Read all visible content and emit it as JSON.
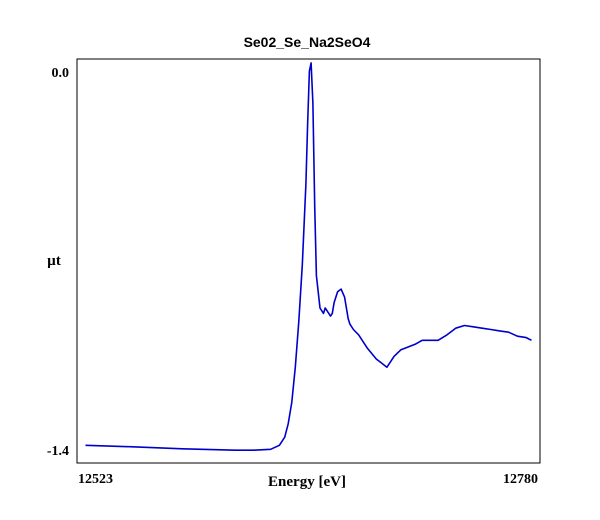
{
  "chart_data": {
    "type": "line",
    "title": "Se02_Se_Na2SeO4",
    "xlabel": "Energy [eV]",
    "ylabel": "µt",
    "xlim": [
      12523,
      12780
    ],
    "ylim": [
      -1.4,
      0.0
    ],
    "x_ticks": [
      "12523",
      "12780"
    ],
    "y_ticks": [
      "0.0",
      "-1.4"
    ],
    "grid": false,
    "legend": "none",
    "colors": {
      "line": "#0000cc",
      "axes": "#000000",
      "background": "#ffffff"
    },
    "series": [
      {
        "x": [
          12525,
          12550,
          12580,
          12610,
          12620,
          12630,
          12635,
          12638,
          12640,
          12642,
          12644,
          12646,
          12648,
          12650,
          12651,
          12652,
          12653,
          12654,
          12655,
          12656,
          12658,
          12660,
          12661,
          12662,
          12664,
          12665,
          12666,
          12668,
          12670,
          12672,
          12673,
          12674,
          12675,
          12677,
          12680,
          12685,
          12690,
          12694,
          12696,
          12698,
          12700,
          12704,
          12708,
          12712,
          12716,
          12720,
          12725,
          12730,
          12735,
          12740,
          12745,
          12750,
          12755,
          12760,
          12765,
          12770,
          12775,
          12778
        ],
        "y": [
          -1.39,
          -1.395,
          -1.403,
          -1.408,
          -1.408,
          -1.405,
          -1.39,
          -1.36,
          -1.31,
          -1.23,
          -1.1,
          -0.93,
          -0.72,
          -0.42,
          -0.2,
          0.0,
          0.03,
          -0.12,
          -0.5,
          -0.76,
          -0.88,
          -0.9,
          -0.88,
          -0.89,
          -0.91,
          -0.9,
          -0.86,
          -0.82,
          -0.81,
          -0.84,
          -0.88,
          -0.92,
          -0.94,
          -0.96,
          -0.98,
          -1.03,
          -1.07,
          -1.09,
          -1.1,
          -1.08,
          -1.06,
          -1.035,
          -1.025,
          -1.015,
          -1.0,
          -1.0,
          -1.0,
          -0.98,
          -0.955,
          -0.945,
          -0.95,
          -0.955,
          -0.96,
          -0.965,
          -0.97,
          -0.985,
          -0.99,
          -1.0
        ]
      }
    ]
  }
}
